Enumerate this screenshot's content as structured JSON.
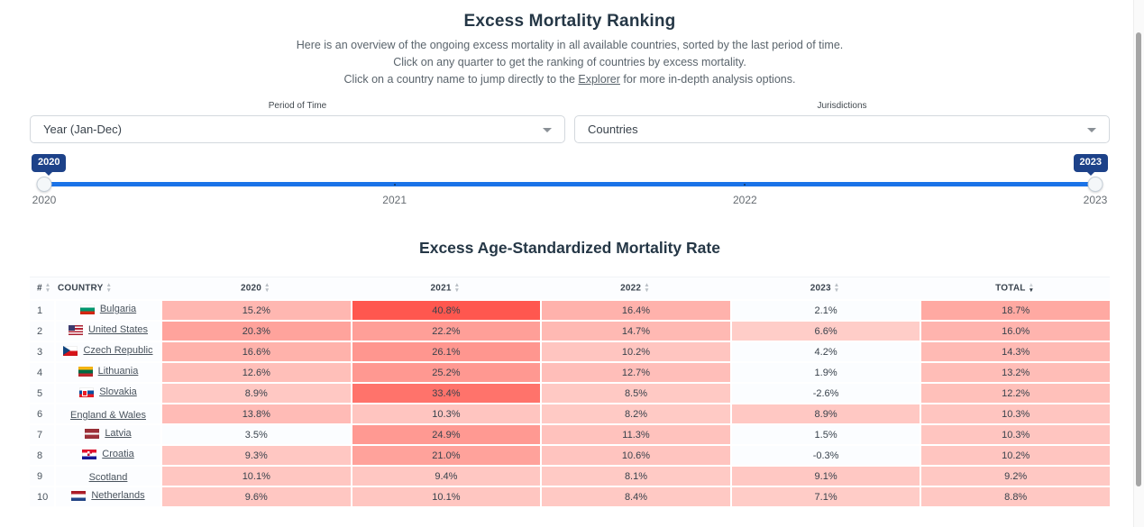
{
  "header": {
    "title": "Excess Mortality Ranking",
    "subtitle1": "Here is an overview of the ongoing excess mortality in all available countries, sorted by the last period of time.",
    "subtitle2": "Click on any quarter to get the ranking of countries by excess mortality.",
    "subtitle3_pre": "Click on a country name to jump directly to the ",
    "subtitle3_link": "Explorer",
    "subtitle3_post": " for more in-depth analysis options."
  },
  "filters": {
    "period": {
      "label": "Period of Time",
      "value": "Year (Jan-Dec)"
    },
    "jurisdictions": {
      "label": "Jurisdictions",
      "value": "Countries"
    }
  },
  "slider": {
    "start_badge": "2020",
    "end_badge": "2023",
    "ticks": [
      "2020",
      "2021",
      "2022",
      "2023"
    ],
    "track_color": "#1a73e8",
    "badge_color": "#1d4289"
  },
  "table": {
    "title": "Excess Age-Standardized Mortality Rate",
    "columns": [
      {
        "key": "rank",
        "label": "#",
        "sort": "none"
      },
      {
        "key": "country",
        "label": "COUNTRY",
        "sort": "none"
      },
      {
        "key": "y2020",
        "label": "2020",
        "sort": "none"
      },
      {
        "key": "y2021",
        "label": "2021",
        "sort": "none"
      },
      {
        "key": "y2022",
        "label": "2022",
        "sort": "none"
      },
      {
        "key": "y2023",
        "label": "2023",
        "sort": "none"
      },
      {
        "key": "total",
        "label": "TOTAL",
        "sort": "desc"
      }
    ],
    "heat_scale": {
      "threshold": 5,
      "below_color": "#fbfdff",
      "stops": [
        [
          5,
          "#ffd0cb"
        ],
        [
          10,
          "#ffc6c1"
        ],
        [
          15,
          "#ffb8b2"
        ],
        [
          20,
          "#ffa49d"
        ],
        [
          26,
          "#ff968f"
        ],
        [
          33,
          "#ff746c"
        ],
        [
          41,
          "#ff564e"
        ]
      ]
    },
    "rows": [
      {
        "rank": "1",
        "flag": "bulgaria",
        "country": "Bulgaria",
        "values": [
          "15.2%",
          "40.8%",
          "16.4%",
          "2.1%",
          "18.7%"
        ]
      },
      {
        "rank": "2",
        "flag": "united-states",
        "country": "United States",
        "values": [
          "20.3%",
          "22.2%",
          "14.7%",
          "6.6%",
          "16.0%"
        ]
      },
      {
        "rank": "3",
        "flag": "czech-republic",
        "country": "Czech Republic",
        "values": [
          "16.6%",
          "26.1%",
          "10.2%",
          "4.2%",
          "14.3%"
        ]
      },
      {
        "rank": "4",
        "flag": "lithuania",
        "country": "Lithuania",
        "values": [
          "12.6%",
          "25.2%",
          "12.7%",
          "1.9%",
          "13.2%"
        ]
      },
      {
        "rank": "5",
        "flag": "slovakia",
        "country": "Slovakia",
        "values": [
          "8.9%",
          "33.4%",
          "8.5%",
          "-2.6%",
          "12.2%"
        ]
      },
      {
        "rank": "6",
        "flag": null,
        "country": "England & Wales",
        "values": [
          "13.8%",
          "10.3%",
          "8.2%",
          "8.9%",
          "10.3%"
        ]
      },
      {
        "rank": "7",
        "flag": "latvia",
        "country": "Latvia",
        "values": [
          "3.5%",
          "24.9%",
          "11.3%",
          "1.5%",
          "10.3%"
        ]
      },
      {
        "rank": "8",
        "flag": "croatia",
        "country": "Croatia",
        "values": [
          "9.3%",
          "21.0%",
          "10.6%",
          "-0.3%",
          "10.2%"
        ]
      },
      {
        "rank": "9",
        "flag": null,
        "country": "Scotland",
        "values": [
          "10.1%",
          "9.4%",
          "8.1%",
          "9.1%",
          "9.2%"
        ]
      },
      {
        "rank": "10",
        "flag": "netherlands",
        "country": "Netherlands",
        "values": [
          "9.6%",
          "10.1%",
          "8.4%",
          "7.1%",
          "8.8%"
        ]
      }
    ]
  }
}
